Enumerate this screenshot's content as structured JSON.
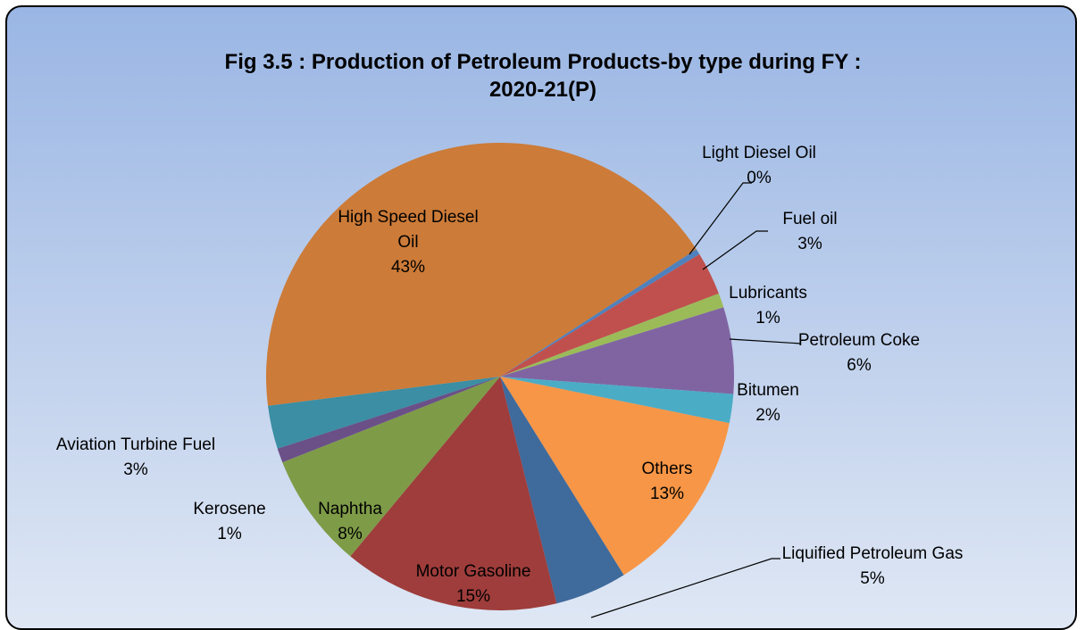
{
  "chart_data": {
    "type": "pie",
    "title": "Fig 3.5 : Production of Petroleum Products-by type during FY : 2020-21(P)",
    "categories": [
      "Light Diesel Oil",
      "Fuel oil",
      "Lubricants",
      "Petroleum Coke",
      "Bitumen",
      "Others",
      "Liquified Petroleum Gas",
      "Motor Gasoline",
      "Naphtha",
      "Kerosene",
      "Aviation Turbine Fuel",
      "High Speed Diesel Oil"
    ],
    "values": [
      0.4,
      3,
      1,
      6,
      2,
      13,
      5,
      15,
      8,
      1,
      3,
      43
    ],
    "value_labels": [
      "0%",
      "3%",
      "1%",
      "6%",
      "2%",
      "13%",
      "5%",
      "15%",
      "8%",
      "1%",
      "3%",
      "43%"
    ],
    "colors": [
      "#4f81bd",
      "#c0504d",
      "#9bbb59",
      "#8064a2",
      "#4bacc6",
      "#f79646",
      "#3f6a9c",
      "#9e3d3b",
      "#7e9b48",
      "#6a5087",
      "#3b8ea3",
      "#cc7b38"
    ]
  }
}
